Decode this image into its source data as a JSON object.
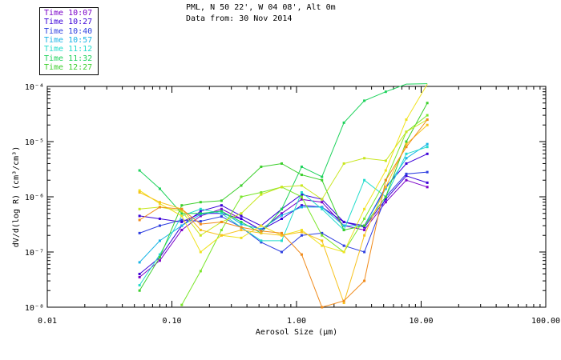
{
  "header": {
    "location": "PML, N 50 22', W 04 08', Alt 0m",
    "data_from": "Data from: 30 Nov 2014"
  },
  "legend": [
    {
      "label": "Time 10:07",
      "color": "#7a00c8"
    },
    {
      "label": "Time 10:27",
      "color": "#3a00d8"
    },
    {
      "label": "Time 10:40",
      "color": "#2e3fe0"
    },
    {
      "label": "Time 10:57",
      "color": "#19b4e6"
    },
    {
      "label": "Time 11:12",
      "color": "#22dccc"
    },
    {
      "label": "Time 11:32",
      "color": "#1ed25c"
    },
    {
      "label": "Time 12:27",
      "color": "#3ccf2c"
    }
  ],
  "chart_data": {
    "type": "line",
    "xscale": "log",
    "yscale": "log",
    "xlim": [
      0.01,
      100
    ],
    "ylim": [
      1e-08,
      0.0001
    ],
    "xlabel": "Aerosol Size (µm)",
    "ylabel": "dV/d(log R) (cm³/cm³)",
    "x_ticks": [
      "0.01",
      "0.10",
      "1.00",
      "10.00",
      "100.00"
    ],
    "y_ticks": [
      "10⁻⁸",
      "10⁻⁷",
      "10⁻⁶",
      "10⁻⁵",
      "10⁻⁴"
    ],
    "series": [
      {
        "color": "#7a00c8",
        "x": [
          0.055,
          0.08,
          0.12,
          0.17,
          0.25,
          0.36,
          0.52,
          0.76,
          1.1,
          1.6,
          2.4,
          3.5,
          5.2,
          7.6,
          11.2
        ],
        "y": [
          3.5e-08,
          7e-08,
          2.5e-07,
          4.5e-07,
          6e-07,
          4e-07,
          2.5e-07,
          5e-07,
          9e-07,
          8e-07,
          3e-07,
          2.5e-07,
          8e-07,
          2e-06,
          1.5e-06
        ]
      },
      {
        "color": "#3a00d8",
        "x": [
          0.055,
          0.08,
          0.12,
          0.17,
          0.25,
          0.36,
          0.52,
          0.76,
          1.1,
          1.6,
          2.4,
          3.5,
          5.2,
          7.6,
          11.2
        ],
        "y": [
          4e-08,
          8e-08,
          3e-07,
          5.5e-07,
          7e-07,
          4.5e-07,
          3e-07,
          6e-07,
          1.1e-06,
          9e-07,
          3.5e-07,
          2.8e-07,
          9e-07,
          2.4e-06,
          1.8e-06
        ]
      },
      {
        "color": "#2e3fe0",
        "x": [
          0.055,
          0.08,
          0.12,
          0.17,
          0.25,
          0.36,
          0.52,
          0.76,
          1.1,
          1.6,
          2.4,
          3.5,
          5.2,
          7.6,
          11.2
        ],
        "y": [
          2.2e-07,
          3e-07,
          3.8e-07,
          3.6e-07,
          4.4e-07,
          2.8e-07,
          1.5e-07,
          1e-07,
          2e-07,
          2.2e-07,
          1.3e-07,
          1e-07,
          1e-06,
          2.6e-06,
          2.8e-06
        ]
      },
      {
        "color": "#3a00d8",
        "x": [
          0.055,
          0.08,
          0.12,
          0.17,
          0.25,
          0.36,
          0.52,
          0.76,
          1.1,
          1.6,
          2.4,
          3.5,
          5.2,
          7.6,
          11.2
        ],
        "y": [
          4.5e-07,
          4e-07,
          3.5e-07,
          5e-07,
          5e-07,
          4e-07,
          2.5e-07,
          4e-07,
          7e-07,
          6.5e-07,
          3.5e-07,
          3e-07,
          1.5e-06,
          4e-06,
          6e-06
        ]
      },
      {
        "color": "#19b4e6",
        "x": [
          0.055,
          0.08,
          0.12,
          0.17,
          0.25,
          0.36,
          0.52,
          0.76,
          1.1,
          1.6,
          2.4,
          3.5,
          5.2,
          7.6,
          11.2
        ],
        "y": [
          6.5e-08,
          1.6e-07,
          3e-07,
          4.8e-07,
          5.5e-07,
          3.2e-07,
          2.6e-07,
          4.6e-07,
          6.5e-07,
          6.5e-07,
          3e-07,
          3e-07,
          1.4e-06,
          5e-06,
          9e-06
        ]
      },
      {
        "color": "#22dccc",
        "x": [
          0.055,
          0.08,
          0.12,
          0.17,
          0.25,
          0.36,
          0.52,
          0.76,
          1.1,
          1.6,
          2.4,
          3.5,
          5.2,
          7.6,
          11.2
        ],
        "y": [
          2.5e-08,
          9e-08,
          4.5e-07,
          6e-07,
          5e-07,
          2.8e-07,
          1.6e-07,
          1.6e-07,
          1.2e-06,
          6e-07,
          2.5e-07,
          2e-06,
          1e-06,
          6e-06,
          8e-06
        ]
      },
      {
        "color": "#1ed25c",
        "x": [
          0.055,
          0.08,
          0.12,
          0.17,
          0.25,
          0.36,
          0.52,
          0.76,
          1.1,
          1.6,
          2.4,
          3.5,
          5.2,
          7.6,
          11.2
        ],
        "y": [
          3e-06,
          1.4e-06,
          5e-07,
          5e-07,
          5.5e-07,
          3.5e-07,
          2.2e-07,
          6e-07,
          3.5e-06,
          2.3e-06,
          2.2e-05,
          5.5e-05,
          8e-05,
          0.00011,
          0.00013
        ]
      },
      {
        "color": "#3ccf2c",
        "x": [
          0.055,
          0.08,
          0.12,
          0.17,
          0.25,
          0.36,
          0.52,
          0.76,
          1.1,
          1.6,
          2.4,
          3.5,
          5.2,
          7.6,
          11.2
        ],
        "y": [
          2e-08,
          8e-08,
          7e-07,
          8e-07,
          8.5e-07,
          1.6e-06,
          3.5e-06,
          4e-06,
          2.5e-06,
          2e-06,
          2.5e-07,
          3e-07,
          1e-06,
          1e-05,
          5e-05
        ]
      },
      {
        "color": "#7ae62a",
        "x": [
          0.12,
          0.17,
          0.25,
          0.36,
          0.52,
          0.76,
          1.1,
          1.6,
          2.4,
          3.5,
          5.2,
          7.6,
          11.2
        ],
        "y": [
          1.1e-08,
          4.5e-08,
          2.5e-07,
          1e-06,
          1.2e-06,
          1.5e-06,
          1e-06,
          2e-07,
          1e-07,
          4e-07,
          2e-06,
          1.5e-05,
          3e-05
        ]
      },
      {
        "color": "#c8e61e",
        "x": [
          0.055,
          0.08,
          0.12,
          0.17,
          0.25,
          0.36,
          0.52,
          0.76,
          1.1,
          1.6,
          2.4,
          3.5,
          5.2,
          7.6,
          11.2
        ],
        "y": [
          6e-07,
          6.5e-07,
          5.5e-07,
          2e-07,
          3.5e-07,
          5e-07,
          1.1e-06,
          1.5e-06,
          1.6e-06,
          9e-07,
          4e-06,
          5e-06,
          4.5e-06,
          1.5e-05,
          2.5e-05
        ]
      },
      {
        "color": "#f0e21e",
        "x": [
          0.055,
          0.08,
          0.12,
          0.17,
          0.25,
          0.36,
          0.52,
          0.76,
          1.1,
          1.6,
          2.4,
          3.5,
          5.2,
          7.6,
          11.2
        ],
        "y": [
          1.3e-06,
          7.5e-07,
          4.5e-07,
          1e-07,
          2e-07,
          1.8e-07,
          3e-07,
          2e-07,
          2.5e-07,
          1.3e-07,
          1e-07,
          6e-07,
          3e-06,
          2.5e-05,
          0.00011
        ]
      },
      {
        "color": "#f7c21e",
        "x": [
          0.055,
          0.08,
          0.12,
          0.17,
          0.25,
          0.36,
          0.52,
          0.76,
          1.1,
          1.6,
          2.4,
          3.5,
          5.2,
          7.6,
          11.2
        ],
        "y": [
          1.2e-06,
          8e-07,
          6e-07,
          2.5e-07,
          2e-07,
          2.5e-07,
          2.2e-07,
          2e-07,
          2.3e-07,
          1.6e-07,
          1.2e-08,
          2e-07,
          1.5e-06,
          9e-06,
          2e-05
        ]
      },
      {
        "color": "#f08a1a",
        "x": [
          0.055,
          0.08,
          0.12,
          0.17,
          0.25,
          0.36,
          0.52,
          0.76,
          1.1,
          1.6,
          2.4,
          3.5,
          5.2,
          7.6,
          11.2
        ],
        "y": [
          3.8e-07,
          6.5e-07,
          6e-07,
          3.2e-07,
          3.5e-07,
          2.8e-07,
          2.4e-07,
          2.2e-07,
          9e-08,
          1e-08,
          1.3e-08,
          3e-08,
          2e-06,
          8e-06,
          2.5e-05
        ]
      }
    ]
  }
}
